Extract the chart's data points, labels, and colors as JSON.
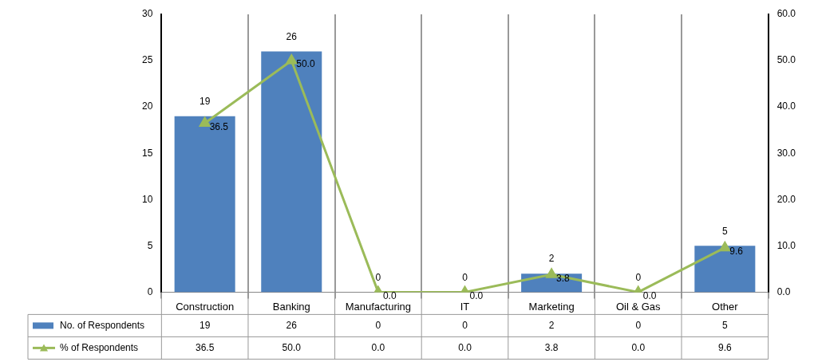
{
  "chart_data": {
    "type": "bar",
    "categories": [
      "Construction",
      "Banking",
      "Manufacturing",
      "IT",
      "Marketing",
      "Oil & Gas",
      "Other"
    ],
    "series": [
      {
        "name": "No. of Respondents",
        "color": "#4f81bd",
        "values": [
          19,
          26,
          0,
          0,
          2,
          0,
          5
        ],
        "value_labels": [
          "19",
          "26",
          "0",
          "0",
          "2",
          "0",
          "5"
        ]
      },
      {
        "name": "% of Respondents",
        "type": "line",
        "axis": "y2",
        "color": "#9bbb59",
        "marker": "triangle",
        "values": [
          36.5,
          50.0,
          0.0,
          0.0,
          3.8,
          0.0,
          9.6
        ],
        "value_labels": [
          "36.5",
          "50.0",
          "0.0",
          "0.0",
          "3.8",
          "0.0",
          "9.6"
        ]
      }
    ],
    "ylim": [
      0,
      30
    ],
    "yticks": [
      0,
      5,
      10,
      15,
      20,
      25,
      30
    ],
    "y2lim": [
      0,
      60
    ],
    "y2ticks": [
      {
        "value": 0,
        "label": "0.0"
      },
      {
        "value": 10,
        "label": "10.0"
      },
      {
        "value": 20,
        "label": "20.0"
      },
      {
        "value": 30,
        "label": "30.0"
      },
      {
        "value": 40,
        "label": "40.0"
      },
      {
        "value": 50,
        "label": "50.0"
      },
      {
        "value": 60,
        "label": "60.0"
      }
    ],
    "grid": "x",
    "legend": "bottom",
    "data_labels": true
  }
}
